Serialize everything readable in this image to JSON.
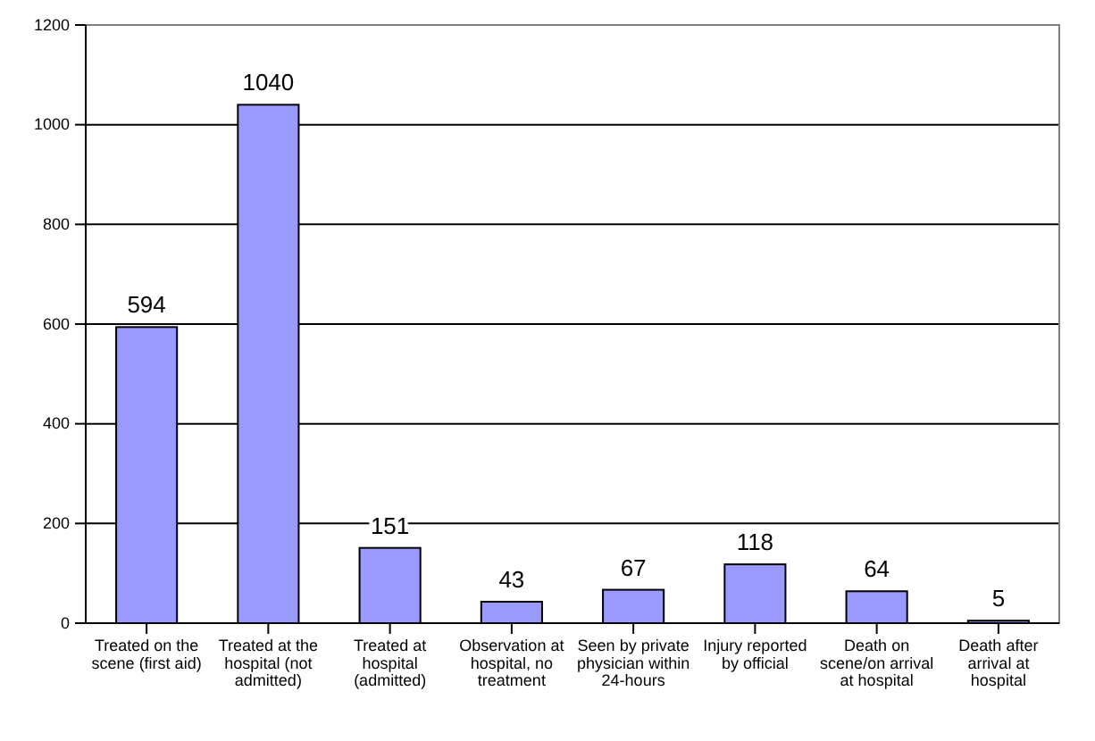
{
  "chart_data": {
    "type": "bar",
    "categories": [
      "Treated on the scene (first aid)",
      "Treated at the hospital (not admitted)",
      "Treated at hospital (admitted)",
      "Observation at hospital, no treatment",
      "Seen by private physician within 24-hours",
      "Injury reported by official",
      "Death on scene/on arrival at hospital",
      "Death after arrival at hospital"
    ],
    "values": [
      594,
      1040,
      151,
      43,
      67,
      118,
      64,
      5
    ],
    "color": "#9999ff",
    "ylim": [
      0,
      1200
    ],
    "yticks": [
      0,
      200,
      400,
      600,
      800,
      1000,
      1200
    ],
    "grid": "y",
    "data_labels": true
  }
}
